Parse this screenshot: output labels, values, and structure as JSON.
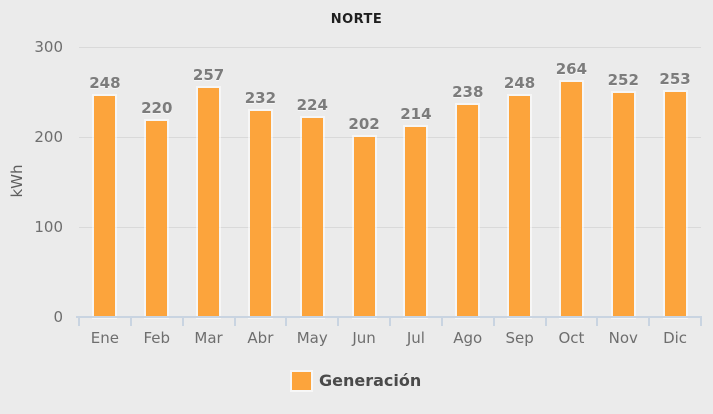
{
  "chart_data": {
    "type": "bar",
    "title": "NORTE",
    "ylabel": "kWh",
    "categories": [
      "Ene",
      "Feb",
      "Mar",
      "Abr",
      "May",
      "Jun",
      "Jul",
      "Ago",
      "Sep",
      "Oct",
      "Nov",
      "Dic"
    ],
    "series": [
      {
        "name": "Generación",
        "color": "#FCA43C",
        "values": [
          248,
          220,
          257,
          232,
          224,
          202,
          214,
          238,
          248,
          264,
          252,
          253
        ]
      }
    ],
    "ylim": [
      0,
      300
    ],
    "yticks": [
      0,
      100,
      200,
      300
    ],
    "grid": true,
    "value_labels": true,
    "legend_position": "bottom"
  },
  "colors": {
    "background": "#EBEBEB",
    "bar": "#FCA43C",
    "gridline": "#D9D9D9",
    "axis_line": "#C9D4E1",
    "title_text": "#1F1F1F",
    "tick_text": "#6E6E6E",
    "value_label_text": "#7C7C7C",
    "legend_text": "#4A4A4A"
  }
}
